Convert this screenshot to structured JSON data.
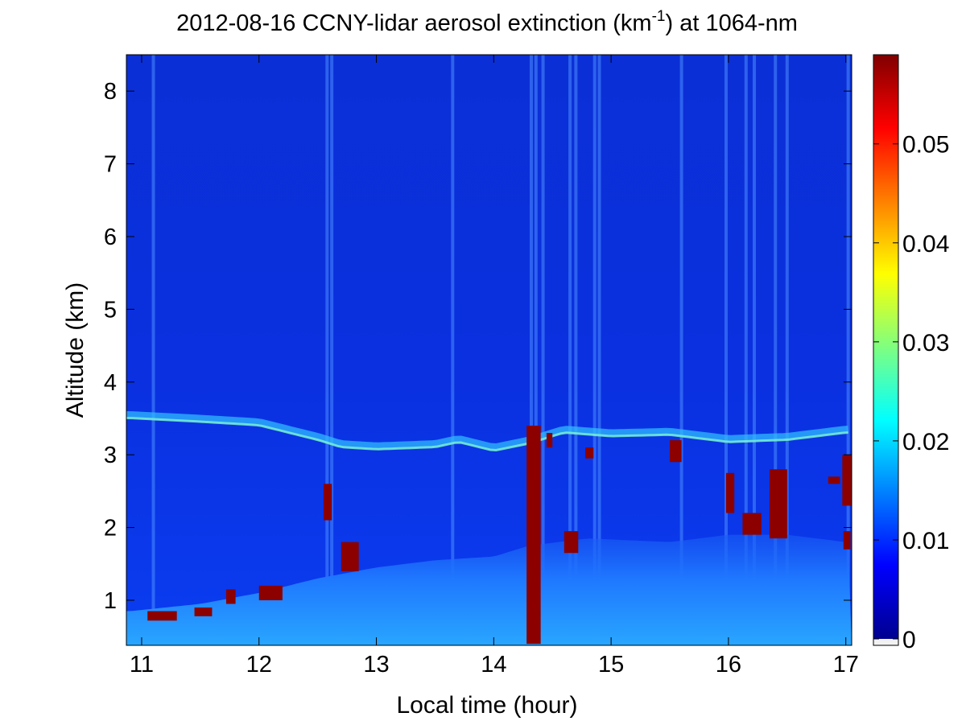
{
  "chart_data": {
    "type": "heatmap",
    "title": {
      "prefix": "2012-08-16 CCNY-lidar aerosol extinction (km",
      "superscript": "-1",
      "suffix": ") at 1064-nm"
    },
    "xlabel": "Local time (hour)",
    "ylabel": "Altitude (km)",
    "xlim": [
      10.87,
      17.05
    ],
    "ylim": [
      0.38,
      8.5
    ],
    "x_ticks": [
      11,
      12,
      13,
      14,
      15,
      16,
      17
    ],
    "y_ticks": [
      1,
      2,
      3,
      4,
      5,
      6,
      7,
      8
    ],
    "colorbar": {
      "colormap": "jet",
      "range": [
        0,
        0.059
      ],
      "ticks": [
        0,
        0.01,
        0.02,
        0.03,
        0.04,
        0.05
      ],
      "tick_labels": [
        "0",
        "0.01",
        "0.02",
        "0.03",
        "0.04",
        "0.05"
      ]
    },
    "features": {
      "aerosol_layer_top_km": [
        {
          "t": 10.9,
          "z": 3.55
        },
        {
          "t": 11.5,
          "z": 3.5
        },
        {
          "t": 12.0,
          "z": 3.45
        },
        {
          "t": 12.5,
          "z": 3.25
        },
        {
          "t": 12.7,
          "z": 3.15
        },
        {
          "t": 13.0,
          "z": 3.12
        },
        {
          "t": 13.5,
          "z": 3.15
        },
        {
          "t": 13.7,
          "z": 3.22
        },
        {
          "t": 14.0,
          "z": 3.1
        },
        {
          "t": 14.3,
          "z": 3.2
        },
        {
          "t": 14.6,
          "z": 3.35
        },
        {
          "t": 15.0,
          "z": 3.3
        },
        {
          "t": 15.5,
          "z": 3.32
        },
        {
          "t": 16.0,
          "z": 3.22
        },
        {
          "t": 16.5,
          "z": 3.25
        },
        {
          "t": 17.0,
          "z": 3.35
        }
      ],
      "boundary_layer_top_km": [
        {
          "t": 10.9,
          "z": 0.85
        },
        {
          "t": 11.5,
          "z": 0.95
        },
        {
          "t": 12.0,
          "z": 1.1
        },
        {
          "t": 12.5,
          "z": 1.3
        },
        {
          "t": 13.0,
          "z": 1.45
        },
        {
          "t": 13.5,
          "z": 1.55
        },
        {
          "t": 14.0,
          "z": 1.6
        },
        {
          "t": 14.3,
          "z": 1.75
        },
        {
          "t": 14.8,
          "z": 1.85
        },
        {
          "t": 15.5,
          "z": 1.8
        },
        {
          "t": 16.0,
          "z": 1.9
        },
        {
          "t": 16.5,
          "z": 1.9
        },
        {
          "t": 17.0,
          "z": 1.8
        }
      ]
    }
  }
}
